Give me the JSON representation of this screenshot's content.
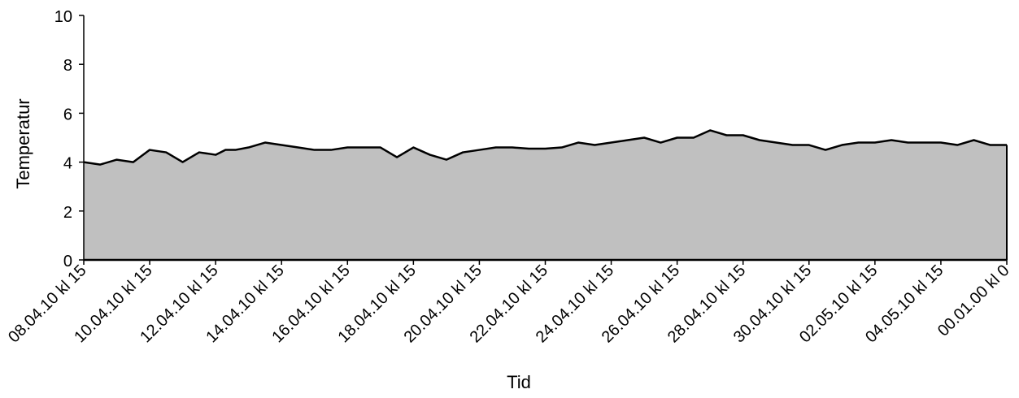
{
  "chart_data": {
    "type": "area",
    "xlabel": "Tid",
    "ylabel": "Temperatur",
    "ylim": [
      0,
      10
    ],
    "yticks": [
      0,
      2,
      4,
      6,
      8,
      10
    ],
    "x_ticks": [
      "08.04.10 kl 15",
      "10.04.10 kl 15",
      "12.04.10 kl 15",
      "14.04.10 kl 15",
      "16.04.10 kl 15",
      "18.04.10 kl 15",
      "20.04.10 kl 15",
      "22.04.10 kl 15",
      "24.04.10 kl 15",
      "26.04.10 kl 15",
      "28.04.10 kl 15",
      "30.04.10 kl 15",
      "02.05.10 kl 15",
      "04.05.10 kl 15",
      "00.01.00 kl 0"
    ],
    "grid": false,
    "fill_color": "#c0c0c0",
    "line_color": "#000000",
    "x": [
      0,
      0.25,
      0.5,
      0.75,
      1,
      1.25,
      1.5,
      1.75,
      2,
      2.15,
      2.3,
      2.5,
      2.75,
      3,
      3.25,
      3.5,
      3.75,
      4,
      4.25,
      4.5,
      4.75,
      5,
      5.25,
      5.5,
      5.75,
      6,
      6.25,
      6.5,
      6.75,
      7,
      7.25,
      7.5,
      7.75,
      8,
      8.25,
      8.5,
      8.75,
      9,
      9.25,
      9.5,
      9.75,
      10,
      10.25,
      10.5,
      10.75,
      11,
      11.25,
      11.5,
      11.75,
      12,
      12.25,
      12.5,
      12.75,
      13,
      13.25,
      13.5,
      13.75,
      14
    ],
    "values": [
      4.0,
      3.9,
      4.1,
      4.0,
      4.5,
      4.4,
      4.0,
      4.4,
      4.3,
      4.5,
      4.5,
      4.6,
      4.8,
      4.7,
      4.6,
      4.5,
      4.5,
      4.6,
      4.6,
      4.6,
      4.2,
      4.6,
      4.3,
      4.1,
      4.4,
      4.5,
      4.6,
      4.6,
      4.55,
      4.55,
      4.6,
      4.8,
      4.7,
      4.8,
      4.9,
      5.0,
      4.8,
      5.0,
      5.0,
      5.3,
      5.1,
      5.1,
      4.9,
      4.8,
      4.7,
      4.7,
      4.5,
      4.7,
      4.8,
      4.8,
      4.9,
      4.8,
      4.8,
      4.8,
      4.7,
      4.9,
      4.7,
      4.7
    ]
  }
}
